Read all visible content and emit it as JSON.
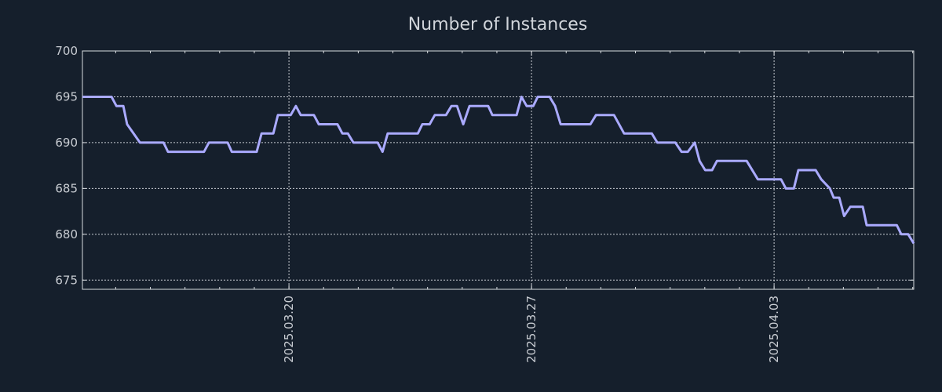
{
  "chart_data": {
    "type": "line",
    "title": "Number of Instances",
    "xlabel": "",
    "ylabel": "",
    "x_units": "days since 2025.03.20",
    "xlim": [
      -5.96,
      18.03
    ],
    "ylim": [
      674,
      700
    ],
    "yticks": [
      675,
      680,
      685,
      690,
      695,
      700
    ],
    "xticks": [
      {
        "value": 0,
        "label": "2025.03.20"
      },
      {
        "value": 7,
        "label": "2025.03.27"
      },
      {
        "value": 14,
        "label": "2025.04.03"
      }
    ],
    "minor_xtick_step": 1,
    "grid": true,
    "line_color": "#aaaaff",
    "background": "#151f2c",
    "series": [
      {
        "name": "Number of Instances",
        "x": [
          -5.96,
          -5.12,
          -4.98,
          -4.78,
          -4.67,
          -4.3,
          -3.62,
          -3.49,
          -2.45,
          -2.31,
          -1.77,
          -1.65,
          -0.93,
          -0.79,
          -0.45,
          -0.32,
          0.05,
          0.2,
          0.34,
          0.72,
          0.86,
          1.4,
          1.54,
          1.7,
          1.86,
          2.56,
          2.7,
          2.85,
          3.72,
          3.85,
          4.06,
          4.21,
          4.53,
          4.69,
          4.85,
          5.03,
          5.21,
          5.75,
          5.87,
          6.57,
          6.71,
          6.86,
          7.05,
          7.18,
          7.52,
          7.68,
          7.84,
          8.7,
          8.86,
          9.38,
          9.67,
          10.47,
          10.63,
          11.15,
          11.33,
          11.51,
          11.71,
          11.85,
          12.01,
          12.21,
          12.35,
          13.21,
          13.53,
          14.2,
          14.34,
          14.57,
          14.7,
          15.2,
          15.36,
          15.61,
          15.72,
          15.88,
          16.02,
          16.2,
          16.56,
          16.67,
          17.54,
          17.67,
          17.87,
          18.03
        ],
        "y": [
          695,
          695,
          694,
          694,
          692,
          690,
          690,
          689,
          689,
          690,
          690,
          689,
          689,
          691,
          691,
          693,
          693,
          694,
          693,
          693,
          692,
          692,
          691,
          691,
          690,
          690,
          689,
          691,
          691,
          692,
          692,
          693,
          693,
          694,
          694,
          692,
          694,
          694,
          693,
          693,
          695,
          694,
          694,
          695,
          695,
          694,
          692,
          692,
          693,
          693,
          691,
          691,
          690,
          690,
          689,
          689,
          690,
          688,
          687,
          687,
          688,
          688,
          686,
          686,
          685,
          685,
          687,
          687,
          686,
          685,
          684,
          684,
          682,
          683,
          683,
          681,
          681,
          680,
          680,
          679
        ]
      }
    ]
  }
}
